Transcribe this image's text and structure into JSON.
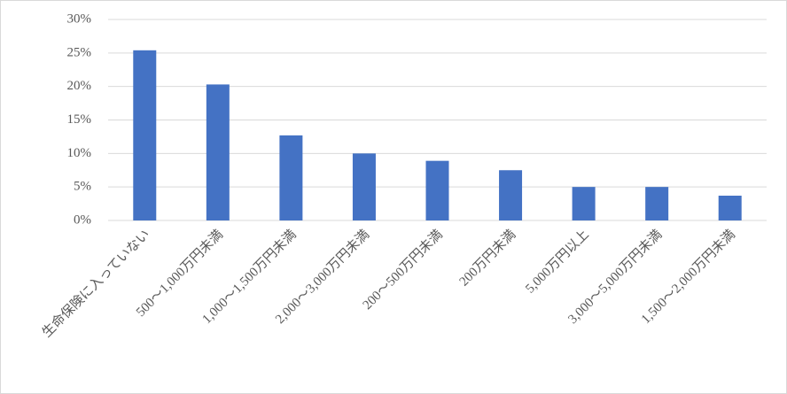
{
  "chart_data": {
    "type": "bar",
    "categories": [
      "生命保険に入っていない",
      "500～1,000万円未満",
      "1,000～1,500万円未満",
      "2,000～3,000万円未満",
      "200～500万円未満",
      "200万円未満",
      "5,000万円以上",
      "3,000～5,000万円未満",
      "1,500～2,000万円未満"
    ],
    "values": [
      25.4,
      20.3,
      12.7,
      10.0,
      8.9,
      7.5,
      5.0,
      5.0,
      3.7
    ],
    "color": "#4472c4",
    "ylim": [
      0,
      30
    ],
    "yticks": [
      {
        "value": 0,
        "label": "0%"
      },
      {
        "value": 5,
        "label": "5%"
      },
      {
        "value": 10,
        "label": "10%"
      },
      {
        "value": 15,
        "label": "15%"
      },
      {
        "value": 20,
        "label": "20%"
      },
      {
        "value": 25,
        "label": "25%"
      },
      {
        "value": 30,
        "label": "30%"
      }
    ],
    "grid": true
  }
}
